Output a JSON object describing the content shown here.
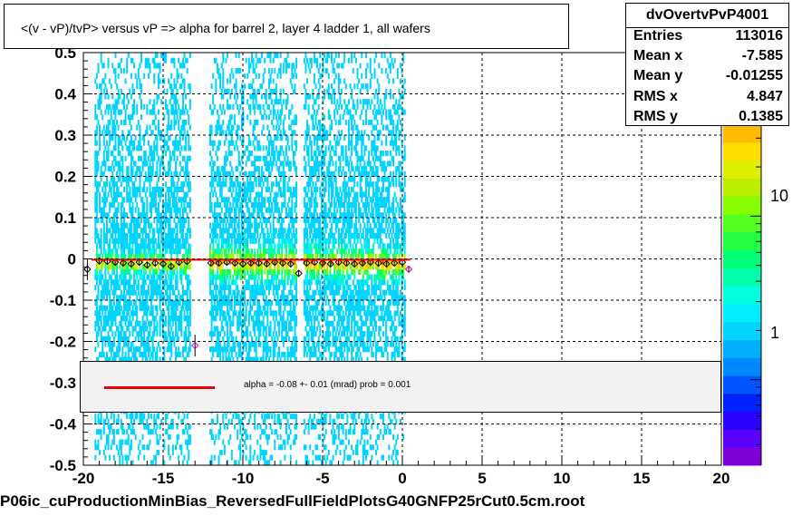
{
  "title": "<(v - vP)/tvP> versus   vP => alpha for barrel 2, layer 4 ladder 1, all wafers",
  "stats": {
    "name": "dvOvertvPvP4001",
    "rows": [
      {
        "key": "Entries",
        "value": "113016"
      },
      {
        "key": "Mean x",
        "value": "-7.585"
      },
      {
        "key": "Mean y",
        "value": "-0.01255"
      },
      {
        "key": "RMS x",
        "value": "4.847"
      },
      {
        "key": "RMS y",
        "value": "0.1385"
      }
    ]
  },
  "legend": {
    "line_color": "#ee0000",
    "text": "alpha =   -0.08 +-  0.01 (mrad) prob = 0.001"
  },
  "footer": "P06ic_cuProductionMinBias_ReversedFullFieldPlotsG40GNFP25rCut0.5cm.root",
  "palette": {
    "labels": [
      "1",
      "10"
    ],
    "label_values": [
      1,
      10
    ],
    "range": [
      0.3,
      100
    ]
  },
  "chart_data": {
    "type": "heatmap",
    "title": "<(v - vP)/tvP> versus   vP => alpha for barrel 2, layer 4 ladder 1, all wafers",
    "xlim": [
      -20,
      20
    ],
    "ylim": [
      -0.5,
      0.5
    ],
    "x_ticks": [
      -20,
      -15,
      -10,
      -5,
      0,
      5,
      10,
      15,
      20
    ],
    "y_ticks": [
      -0.5,
      -0.4,
      -0.3,
      -0.2,
      -0.1,
      0,
      0.1,
      0.2,
      0.3,
      0.4,
      0.5
    ],
    "x_tick_labels": [
      "-20",
      "-15",
      "-10",
      "-5",
      "0",
      "5",
      "10",
      "15",
      "20"
    ],
    "y_tick_labels": [
      "-0.5",
      "-0.4",
      "-0.3",
      "-0.2",
      "-0.1",
      "0",
      "0.1",
      "0.2",
      "0.3",
      "0.4",
      "0.5"
    ],
    "grid": true,
    "populated_x_ranges": [
      [
        -19.3,
        -13.3
      ],
      [
        -12.1,
        -6.7
      ],
      [
        -6.2,
        0.1
      ]
    ],
    "band_y": -0.01,
    "fit_line": {
      "x": [
        -19.5,
        0.5
      ],
      "y": [
        -0.002,
        -0.002
      ],
      "color": "#ee0000"
    },
    "profile_points": {
      "x": [
        -19.75,
        -19,
        -18.5,
        -18,
        -17.5,
        -17,
        -16.5,
        -16,
        -15.5,
        -15,
        -14.5,
        -14,
        -13.5,
        -13,
        -12,
        -11.5,
        -11,
        -10.5,
        -10,
        -9.5,
        -9,
        -8.5,
        -8,
        -7.5,
        -7,
        -6.5,
        -6,
        -5.5,
        -5,
        -4.5,
        -4,
        -3.5,
        -3,
        -2.5,
        -2,
        -1.5,
        -1,
        -0.5,
        0,
        0.4
      ],
      "y": [
        -0.025,
        -0.005,
        -0.006,
        -0.008,
        -0.01,
        -0.012,
        -0.008,
        -0.015,
        -0.01,
        -0.012,
        -0.018,
        -0.008,
        -0.006,
        -0.21,
        -0.01,
        -0.01,
        -0.008,
        -0.01,
        -0.012,
        -0.01,
        -0.01,
        -0.012,
        -0.008,
        -0.01,
        -0.012,
        -0.035,
        -0.01,
        -0.008,
        -0.01,
        -0.012,
        -0.008,
        -0.01,
        -0.012,
        -0.01,
        -0.008,
        -0.01,
        -0.012,
        -0.01,
        -0.008,
        -0.025
      ]
    }
  }
}
